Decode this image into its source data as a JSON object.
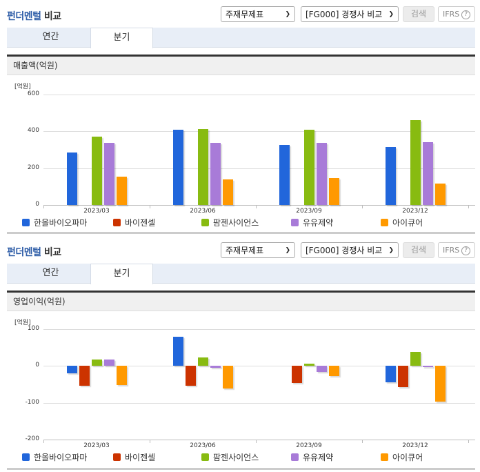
{
  "sections": [
    {
      "title_part1": "펀더멘털",
      "title_part2": "비교",
      "select_statement": "주재무제표",
      "select_compare": "[FG000] 경쟁사 비교",
      "search_button": "검색",
      "ifrs_button": "IFRS",
      "ifrs_help": "?",
      "tabs": [
        {
          "label": "연간",
          "active": false
        },
        {
          "label": "분기",
          "active": true
        }
      ],
      "panel_title": "매출액(억원)",
      "unit": "[억원]"
    },
    {
      "title_part1": "펀더멘털",
      "title_part2": "비교",
      "select_statement": "주재무제표",
      "select_compare": "[FG000] 경쟁사 비교",
      "search_button": "검색",
      "ifrs_button": "IFRS",
      "ifrs_help": "?",
      "tabs": [
        {
          "label": "연간",
          "active": false
        },
        {
          "label": "분기",
          "active": true
        }
      ],
      "panel_title": "영업이익(억원)",
      "unit": "[억원]"
    }
  ],
  "colors": {
    "한올바이오파마": "#2166db",
    "바이젠셀": "#cc3300",
    "팜젠사이언스": "#88bb11",
    "유유제약": "#a87bd8",
    "아이큐어": "#ff9900"
  },
  "chart_data": [
    {
      "type": "bar",
      "title": "매출액(억원)",
      "ylabel": "[억원]",
      "xlabel": "",
      "categories": [
        "2023/03",
        "2023/06",
        "2023/09",
        "2023/12"
      ],
      "yticks": [
        0,
        200,
        400,
        600
      ],
      "ylim": [
        0,
        600
      ],
      "grid": true,
      "legend_position": "bottom",
      "series": [
        {
          "name": "한올바이오파마",
          "color": "#2166db",
          "values": [
            285,
            409,
            326,
            315
          ]
        },
        {
          "name": "바이젠셀",
          "color": "#cc3300",
          "values": [
            0,
            0,
            0,
            0
          ]
        },
        {
          "name": "팜젠사이언스",
          "color": "#88bb11",
          "values": [
            371,
            412,
            409,
            461
          ]
        },
        {
          "name": "유유제약",
          "color": "#a87bd8",
          "values": [
            338,
            338,
            338,
            341
          ]
        },
        {
          "name": "아이큐어",
          "color": "#ff9900",
          "values": [
            154,
            139,
            146,
            116
          ]
        }
      ]
    },
    {
      "type": "bar",
      "title": "영업이익(억원)",
      "ylabel": "[억원]",
      "xlabel": "",
      "categories": [
        "2023/03",
        "2023/06",
        "2023/09",
        "2023/12"
      ],
      "yticks": [
        -200,
        -100,
        0,
        100
      ],
      "ylim": [
        -200,
        100
      ],
      "grid": true,
      "legend_position": "bottom",
      "series": [
        {
          "name": "한올바이오파마",
          "color": "#2166db",
          "values": [
            -20,
            80,
            0,
            -44
          ]
        },
        {
          "name": "바이젠셀",
          "color": "#cc3300",
          "values": [
            -53,
            -54,
            -46,
            -57
          ]
        },
        {
          "name": "팜젠사이언스",
          "color": "#88bb11",
          "values": [
            18,
            23,
            7,
            39
          ]
        },
        {
          "name": "유유제약",
          "color": "#a87bd8",
          "values": [
            18,
            -5,
            -16,
            -2
          ]
        },
        {
          "name": "아이큐어",
          "color": "#ff9900",
          "values": [
            -52,
            -62,
            -28,
            -96
          ]
        }
      ]
    }
  ]
}
